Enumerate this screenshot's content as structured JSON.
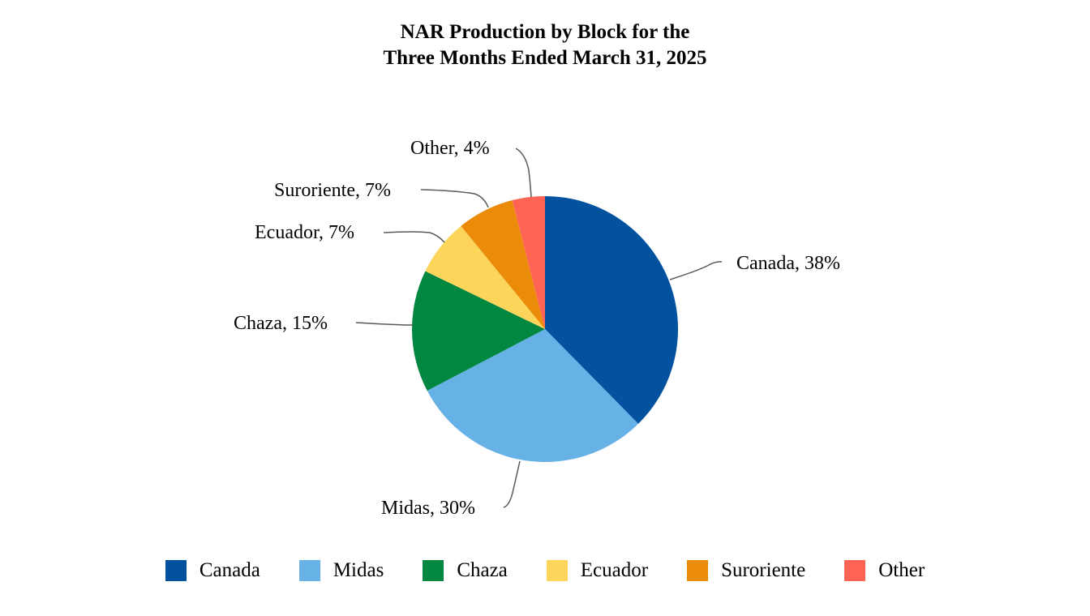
{
  "chart_data": {
    "type": "pie",
    "title_lines": [
      "NAR Production by Block for the",
      "Three Months Ended March 31, 2025"
    ],
    "categories": [
      "Canada",
      "Midas",
      "Chaza",
      "Ecuador",
      "Suroriente",
      "Other"
    ],
    "values": [
      38,
      30,
      15,
      7,
      7,
      4
    ],
    "unit": "%",
    "colors": [
      "#0252A0",
      "#66B1E5",
      "#01873F",
      "#FCD55A",
      "#EA8C0A",
      "#FE6454"
    ],
    "data_labels": [
      "Canada, 38%",
      "Midas, 30%",
      "Chaza, 15%",
      "Ecuador, 7%",
      "Suroriente, 7%",
      "Other, 4%"
    ],
    "legend_position": "bottom",
    "start_angle": "12 o'clock",
    "direction": "clockwise"
  }
}
